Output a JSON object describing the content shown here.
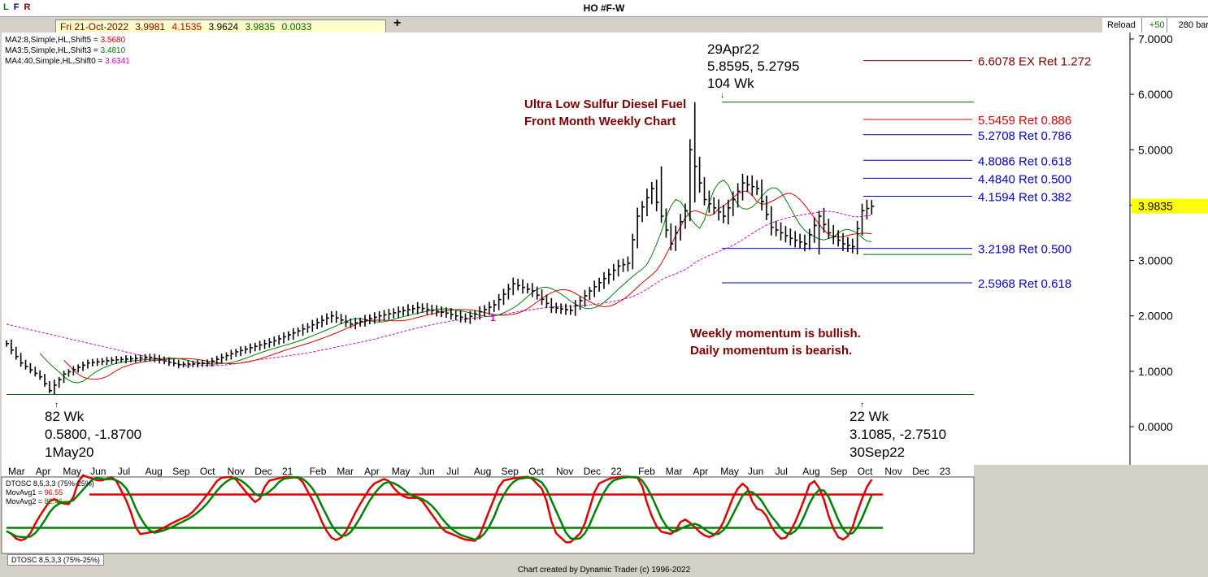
{
  "header": {
    "title": "HO #F-W",
    "lfr": [
      "L",
      "F",
      "R"
    ],
    "lfr_colors": [
      "#008000",
      "#000080",
      "#800000"
    ],
    "info": {
      "date": "Fri 21-Oct-2022",
      "open": "3.9981",
      "high": "4.1535",
      "low": "3.9624",
      "close": "3.9835",
      "change": "0.0033"
    },
    "plus_label": "+",
    "reload_label": "Reload",
    "bars_increment": "+50",
    "bars_count": "280 bars"
  },
  "ma_labels": [
    {
      "text": "MA2:8,Simple,HL,Shift5 = ",
      "value": "3.5680",
      "color": "#e00000"
    },
    {
      "text": "MA3:5,Simple,HL,Shift3 = ",
      "value": "3.4810",
      "color": "#008000"
    },
    {
      "text": "MA4:40,Simple,HL,Shift0 = ",
      "value": "3.6341",
      "color": "#d000d0"
    }
  ],
  "annotations": {
    "title_lines": [
      "Ultra Low Sulfur Diesel Fuel",
      "Front Month Weekly Chart"
    ],
    "momentum_lines": [
      "Weekly momentum is bullish.",
      "Daily momentum is bearish."
    ],
    "high_label": [
      "29Apr22",
      "5.8595, 5.2795",
      "104 Wk"
    ],
    "low1_label": [
      "82 Wk",
      "0.5800, -1.8700",
      "1May20"
    ],
    "low2_label": [
      "22 Wk",
      "3.1085, -2.7510",
      "30Sep22"
    ],
    "marker_1": "1"
  },
  "retracements": [
    {
      "label": "6.6078 EX Ret 1.272",
      "value": 6.6078,
      "color": "#800000"
    },
    {
      "label": "5.5459 Ret 0.886",
      "value": 5.5459,
      "color": "#e00000"
    },
    {
      "label": "5.2708 Ret 0.786",
      "value": 5.2708,
      "color": "#0000cc"
    },
    {
      "label": "4.8086 Ret 0.618",
      "value": 4.8086,
      "color": "#0000cc"
    },
    {
      "label": "4.4840 Ret 0.500",
      "value": 4.484,
      "color": "#0000cc"
    },
    {
      "label": "4.1594 Ret 0.382",
      "value": 4.1594,
      "color": "#0000cc"
    },
    {
      "label": "3.2198 Ret 0.500",
      "value": 3.2198,
      "color": "#0000cc"
    },
    {
      "label": "2.5968 Ret 0.618",
      "value": 2.5968,
      "color": "#0000cc"
    }
  ],
  "chart_data": {
    "type": "ohlc",
    "title": "HO #F-W",
    "ylim": [
      -0.2,
      7.2
    ],
    "y_ticks": [
      0,
      1,
      2,
      3,
      4,
      5,
      6,
      7
    ],
    "y_tick_labels": [
      "0.0000",
      "1.0000",
      "2.0000",
      "3.0000",
      "4.0000",
      "5.0000",
      "6.0000",
      "7.0000"
    ],
    "last_price": "3.9835",
    "x_labels": [
      "Mar",
      "Apr",
      "May",
      "Jun",
      "Jul",
      "Aug",
      "Sep",
      "Oct",
      "Nov",
      "Dec",
      "21",
      "Feb",
      "Mar",
      "Apr",
      "May",
      "Jun",
      "Jul",
      "Aug",
      "Sep",
      "Oct",
      "Nov",
      "Dec",
      "22",
      "Feb",
      "Mar",
      "Apr",
      "May",
      "Jun",
      "Jul",
      "Aug",
      "Sep",
      "Oct",
      "Nov",
      "Dec",
      "23"
    ],
    "close_keypoints": [
      [
        0,
        1.5
      ],
      [
        3,
        1.15
      ],
      [
        7,
        0.9
      ],
      [
        9,
        0.65
      ],
      [
        12,
        0.95
      ],
      [
        17,
        1.15
      ],
      [
        22,
        1.2
      ],
      [
        30,
        1.25
      ],
      [
        36,
        1.12
      ],
      [
        42,
        1.15
      ],
      [
        48,
        1.35
      ],
      [
        56,
        1.55
      ],
      [
        63,
        1.8
      ],
      [
        68,
        2.0
      ],
      [
        72,
        1.85
      ],
      [
        78,
        2.0
      ],
      [
        86,
        2.15
      ],
      [
        92,
        2.05
      ],
      [
        96,
        1.95
      ],
      [
        102,
        2.2
      ],
      [
        106,
        2.58
      ],
      [
        110,
        2.45
      ],
      [
        114,
        2.15
      ],
      [
        118,
        2.1
      ],
      [
        122,
        2.45
      ],
      [
        128,
        2.9
      ],
      [
        130,
        2.95
      ],
      [
        132,
        3.8
      ],
      [
        135,
        4.3
      ],
      [
        139,
        3.3
      ],
      [
        142,
        3.9
      ],
      [
        143,
        5.0
      ],
      [
        146,
        4.1
      ],
      [
        150,
        3.8
      ],
      [
        154,
        4.4
      ],
      [
        157,
        4.3
      ],
      [
        160,
        3.6
      ],
      [
        164,
        3.4
      ],
      [
        167,
        3.3
      ],
      [
        170,
        3.8
      ],
      [
        172,
        3.5
      ],
      [
        175,
        3.3
      ],
      [
        177,
        3.25
      ],
      [
        179,
        3.9
      ],
      [
        181,
        3.98
      ]
    ],
    "osc_keypoints": [
      [
        0,
        20
      ],
      [
        2,
        5
      ],
      [
        4,
        10
      ],
      [
        6,
        38
      ],
      [
        9,
        70
      ],
      [
        11,
        62
      ],
      [
        13,
        60
      ],
      [
        15,
        105
      ],
      [
        19,
        95
      ],
      [
        22,
        102
      ],
      [
        25,
        60
      ],
      [
        27,
        15
      ],
      [
        31,
        20
      ],
      [
        35,
        35
      ],
      [
        38,
        45
      ],
      [
        41,
        70
      ],
      [
        44,
        100
      ],
      [
        47,
        102
      ],
      [
        50,
        75
      ],
      [
        52,
        60
      ],
      [
        54,
        95
      ],
      [
        58,
        102
      ],
      [
        61,
        100
      ],
      [
        64,
        60
      ],
      [
        66,
        25
      ],
      [
        68,
        5
      ],
      [
        70,
        12
      ],
      [
        73,
        55
      ],
      [
        76,
        90
      ],
      [
        79,
        100
      ],
      [
        81,
        80
      ],
      [
        83,
        70
      ],
      [
        86,
        70
      ],
      [
        89,
        40
      ],
      [
        91,
        20
      ],
      [
        93,
        15
      ],
      [
        95,
        8
      ],
      [
        98,
        5
      ],
      [
        101,
        60
      ],
      [
        103,
        95
      ],
      [
        106,
        100
      ],
      [
        109,
        102
      ],
      [
        112,
        80
      ],
      [
        114,
        20
      ],
      [
        117,
        0
      ],
      [
        120,
        20
      ],
      [
        123,
        90
      ],
      [
        126,
        100
      ],
      [
        129,
        102
      ],
      [
        132,
        100
      ],
      [
        134,
        50
      ],
      [
        136,
        20
      ],
      [
        139,
        15
      ],
      [
        141,
        40
      ],
      [
        143,
        30
      ],
      [
        145,
        15
      ],
      [
        147,
        10
      ],
      [
        149,
        25
      ],
      [
        152,
        80
      ],
      [
        154,
        95
      ],
      [
        156,
        55
      ],
      [
        158,
        50
      ],
      [
        160,
        20
      ],
      [
        162,
        5
      ],
      [
        164,
        25
      ],
      [
        166,
        60
      ],
      [
        168,
        100
      ],
      [
        170,
        80
      ],
      [
        172,
        30
      ],
      [
        174,
        5
      ],
      [
        176,
        15
      ],
      [
        178,
        60
      ],
      [
        180,
        95
      ],
      [
        181,
        100
      ]
    ],
    "osc_upper": 75,
    "osc_lower": 25,
    "osc_legend": [
      {
        "label": "DTOSC 8,5,3,3 (75%-25%)",
        "color": "#000000"
      },
      {
        "label": "MovAvg1 = ",
        "value": "96.55",
        "color": "#e00000"
      },
      {
        "label": "MovAvg2 = ",
        "value": "82.46",
        "color": "#008000"
      }
    ],
    "osc_tab": "DTOSC 8,5,3,3 (75%-25%)"
  },
  "footer": "Chart created by Dynamic Trader  (c) 1996-2022"
}
